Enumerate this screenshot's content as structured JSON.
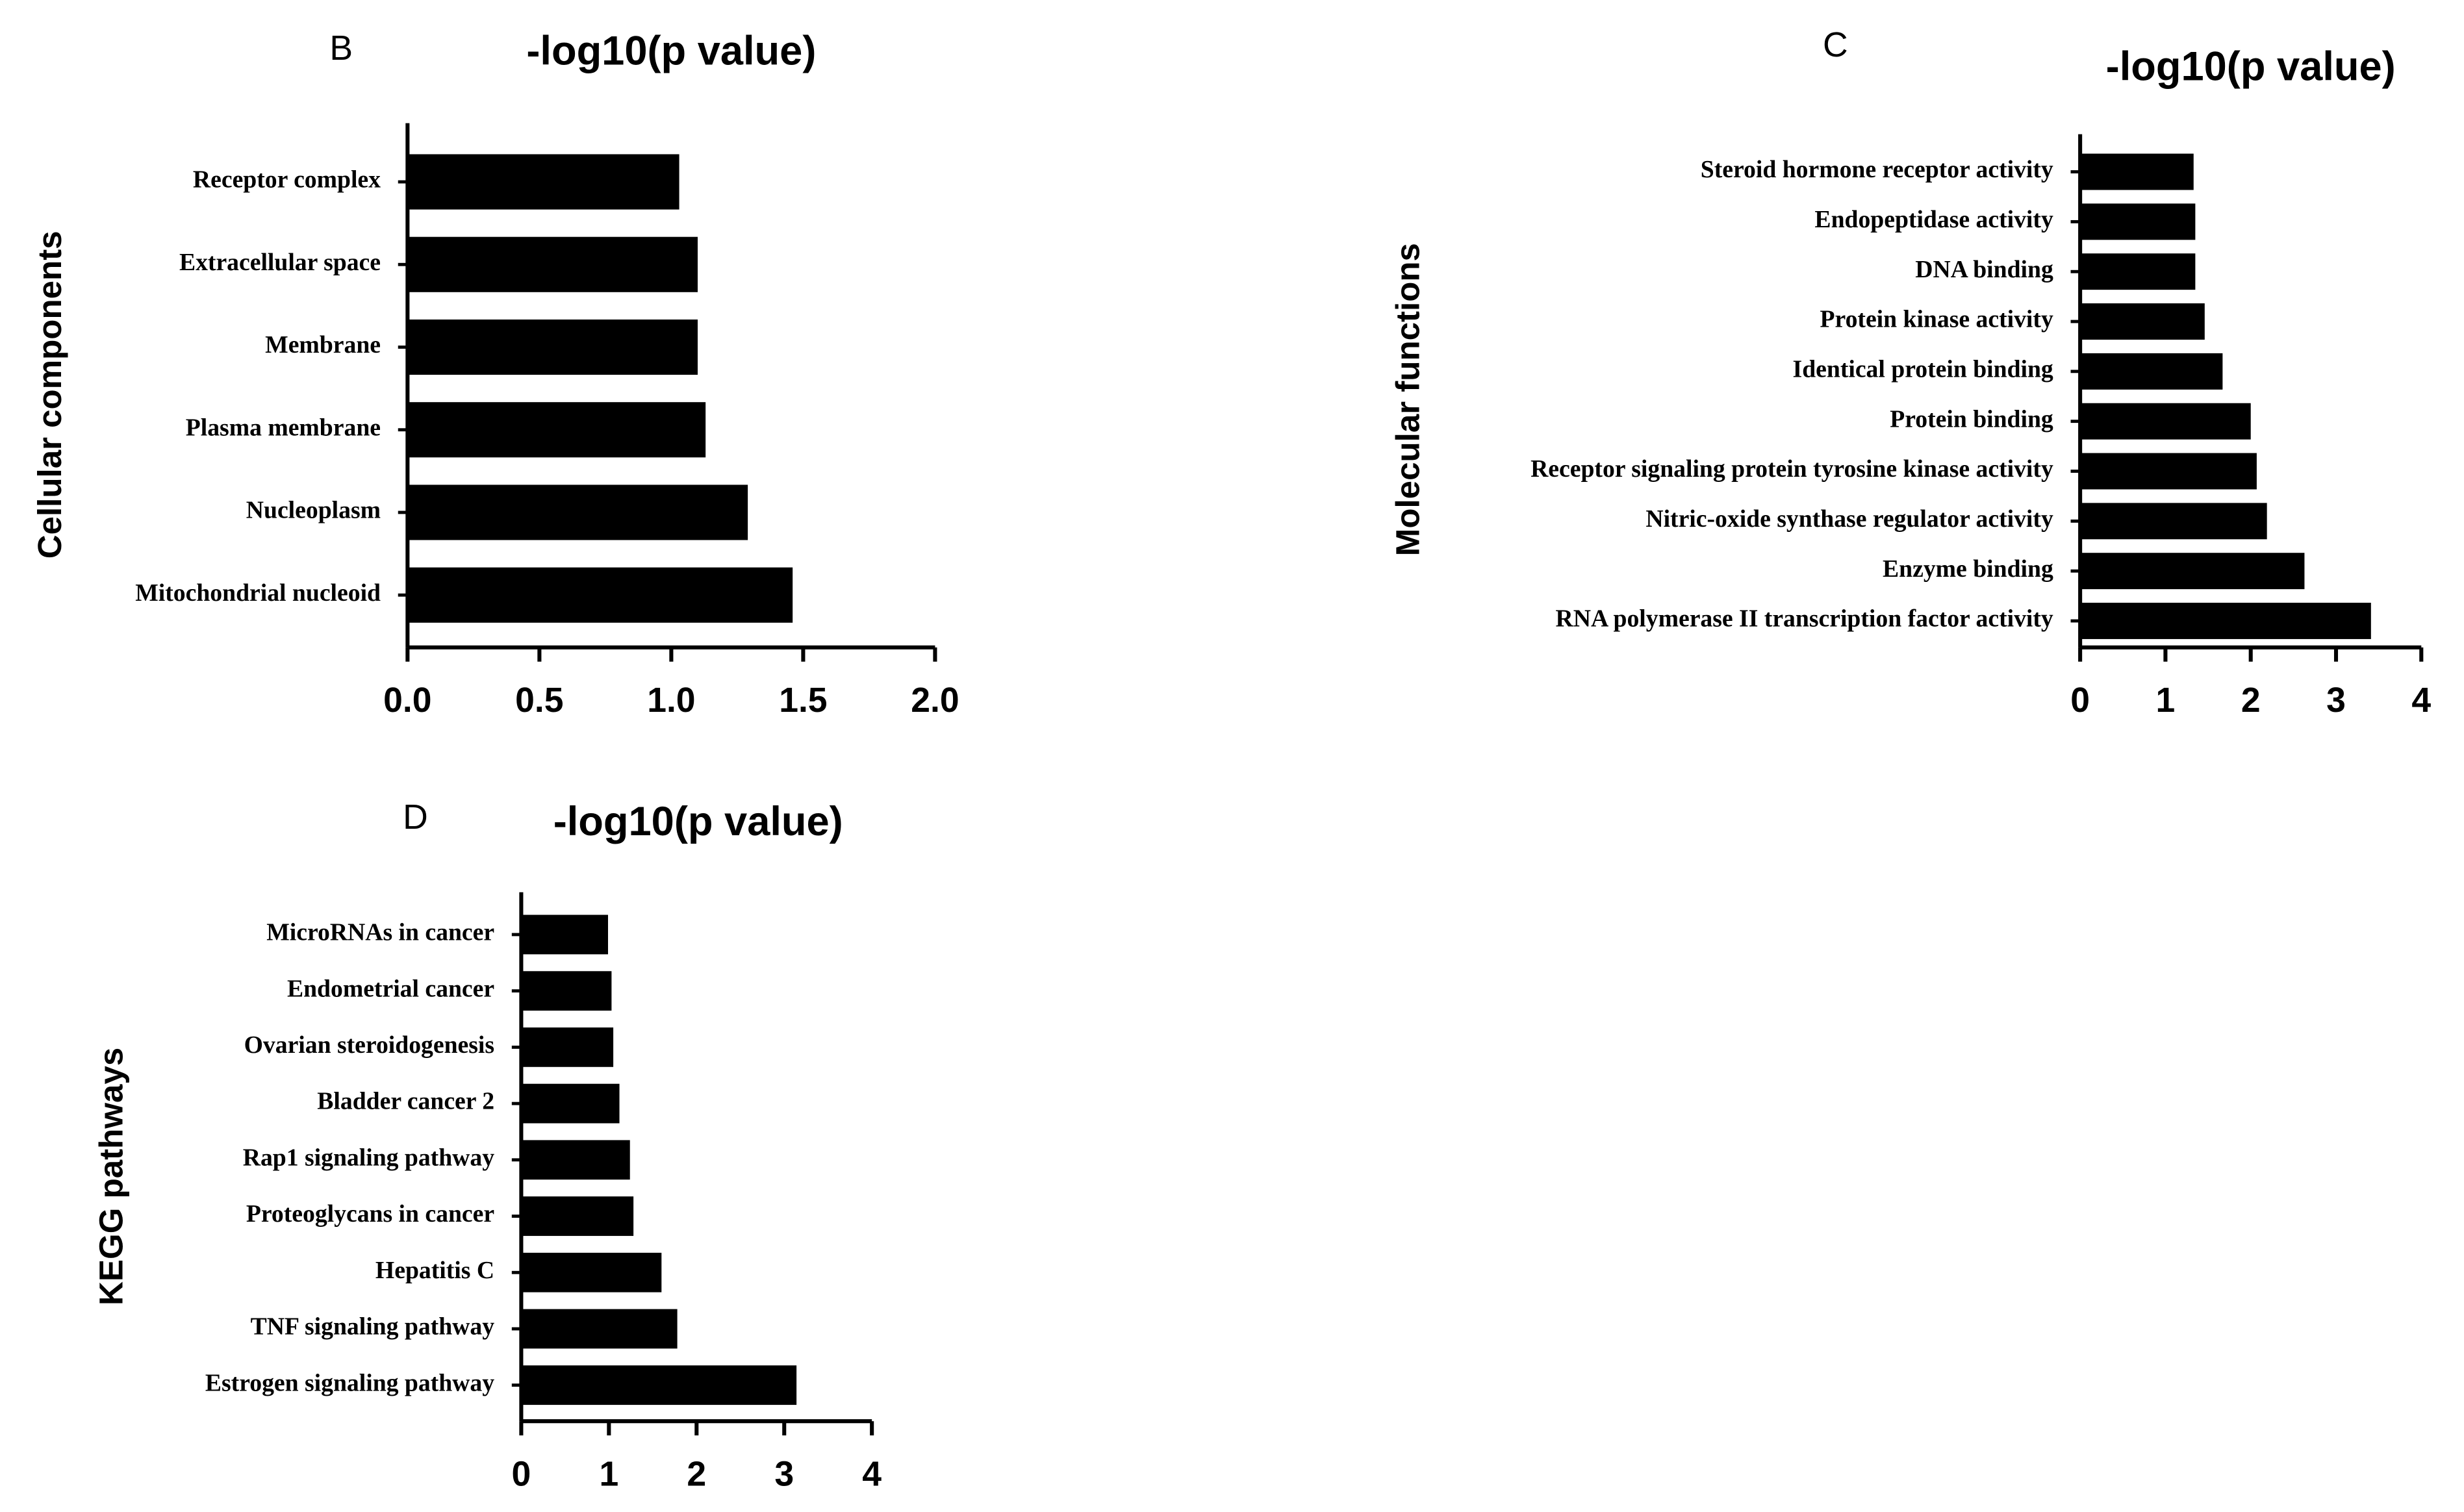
{
  "chart_data": [
    {
      "type": "bar",
      "panel": "B",
      "title": "-log10(p value)",
      "ylabel": "Cellular components",
      "color": "#000000",
      "categories": [
        "Receptor complex",
        "Extracellular space",
        "Membrane",
        "Plasma membrane",
        "Nucleoplasm",
        "Mitochondrial nucleoid"
      ],
      "values": [
        1.03,
        1.1,
        1.1,
        1.13,
        1.29,
        1.46
      ],
      "xlim": [
        0,
        2
      ],
      "xticks": [
        {
          "value": 0,
          "label": "0.0"
        },
        0.5,
        {
          "value": 1,
          "label": "1.0"
        },
        1.5,
        {
          "value": 2,
          "label": "2.0"
        }
      ]
    },
    {
      "type": "bar",
      "panel": "C",
      "title": "-log10(p value)",
      "ylabel": "Molecular functions",
      "color": "#000000",
      "categories": [
        "Steroid hormone receptor activity",
        "Endopeptidase activity",
        "DNA binding",
        "Protein kinase activity",
        "Identical protein binding",
        "Protein binding",
        "Receptor signaling protein tyrosine kinase activity",
        "Nitric-oxide synthase regulator activity",
        "Enzyme binding",
        "RNA polymerase II transcription factor activity"
      ],
      "values": [
        1.33,
        1.35,
        1.35,
        1.46,
        1.67,
        2.0,
        2.07,
        2.19,
        2.63,
        3.41
      ],
      "xlim": [
        0,
        4
      ],
      "xticks": [
        0,
        1,
        2,
        3,
        4
      ]
    },
    {
      "type": "bar",
      "panel": "D",
      "title": "-log10(p value)",
      "ylabel": "KEGG pathways",
      "color": "#000000",
      "categories": [
        "MicroRNAs in cancer",
        "Endometrial cancer",
        "Ovarian steroidogenesis",
        "Bladder cancer 2",
        "Rap1 signaling pathway",
        "Proteoglycans in cancer",
        "Hepatitis C",
        "TNF signaling pathway",
        "Estrogen signaling pathway"
      ],
      "values": [
        0.99,
        1.03,
        1.05,
        1.12,
        1.24,
        1.28,
        1.6,
        1.78,
        3.14
      ],
      "xlim": [
        0,
        4
      ],
      "xticks": [
        0,
        1,
        2,
        3,
        4
      ]
    }
  ]
}
